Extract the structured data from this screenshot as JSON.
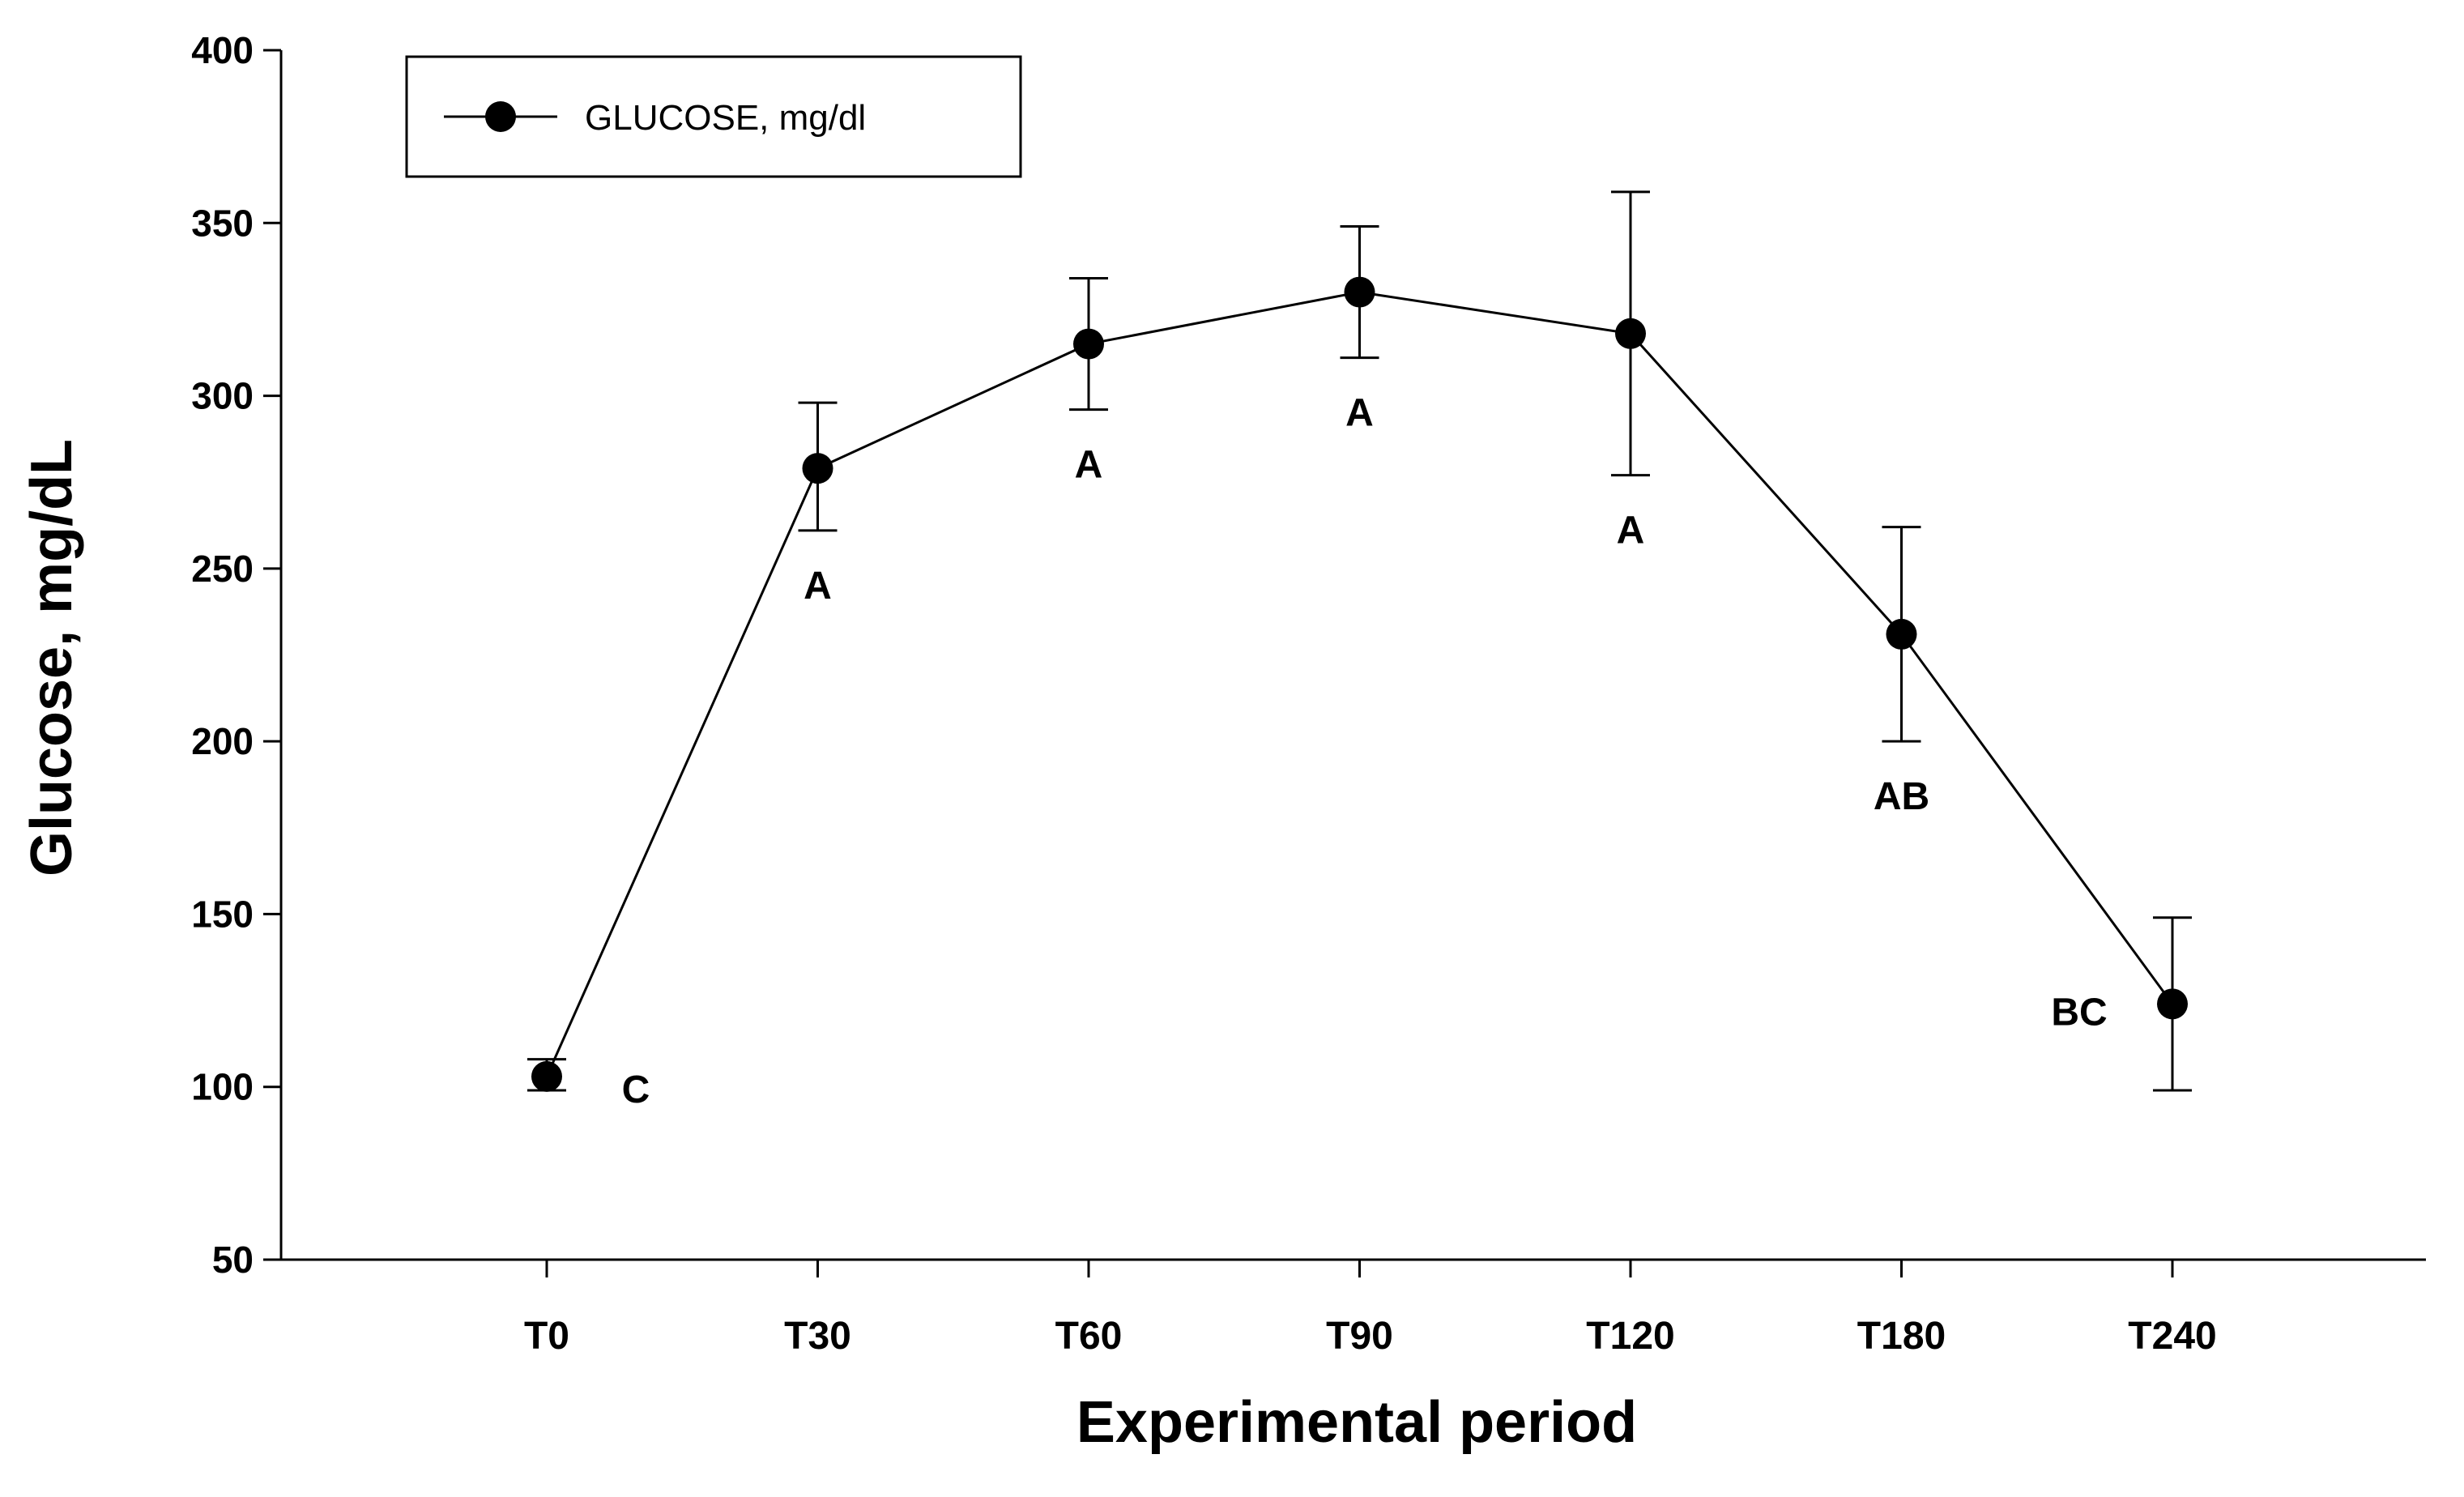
{
  "chart_data": {
    "type": "line",
    "title": "",
    "xlabel": "Experimental period",
    "ylabel": "Glucose, mg/dL",
    "ylim": [
      50,
      400
    ],
    "yticks": [
      50,
      100,
      150,
      200,
      250,
      300,
      350,
      400
    ],
    "categories": [
      "T0",
      "T30",
      "T60",
      "T90",
      "T120",
      "T180",
      "T240"
    ],
    "series": [
      {
        "name": "GLUCOSE, mg/dl",
        "values": [
          103,
          279,
          315,
          330,
          318,
          231,
          124
        ],
        "error_low": [
          99,
          261,
          296,
          311,
          277,
          200,
          99
        ],
        "error_high": [
          108,
          298,
          334,
          349,
          359,
          262,
          149
        ],
        "color": "#000000",
        "marker": "filled-circle"
      }
    ],
    "annotations": [
      {
        "category": "T0",
        "text": "C",
        "placement": "right"
      },
      {
        "category": "T30",
        "text": "A",
        "placement": "below"
      },
      {
        "category": "T60",
        "text": "A",
        "placement": "below"
      },
      {
        "category": "T90",
        "text": "A",
        "placement": "below"
      },
      {
        "category": "T120",
        "text": "A",
        "placement": "below"
      },
      {
        "category": "T180",
        "text": "AB",
        "placement": "below"
      },
      {
        "category": "T240",
        "text": "BC",
        "placement": "left"
      }
    ],
    "legend": {
      "position": "top-left",
      "label": "GLUCOSE, mg/dl"
    },
    "grid": false
  }
}
